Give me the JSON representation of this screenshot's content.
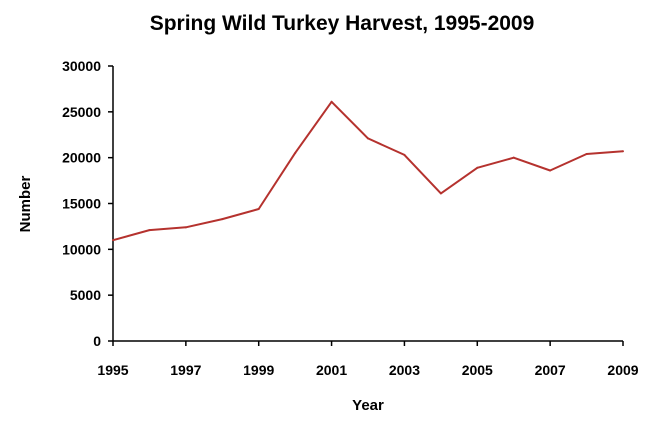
{
  "chart_data": {
    "type": "line",
    "title": "Spring Wild Turkey Harvest, 1995-2009",
    "xlabel": "Year",
    "ylabel": "Number",
    "xlim": [
      1995,
      2009
    ],
    "ylim": [
      0,
      30000
    ],
    "x_ticks": [
      "1995",
      "1997",
      "1999",
      "2001",
      "2003",
      "2005",
      "2007",
      "2009"
    ],
    "y_ticks": [
      "30000",
      "25000",
      "20000",
      "15000",
      "10000",
      "5000",
      "0"
    ],
    "grid": false,
    "legend": "none",
    "series": [
      {
        "color": "#b5322e",
        "x": [
          1995,
          1996,
          1997,
          1998,
          1999,
          2000,
          2001,
          2002,
          2003,
          2004,
          2005,
          2006,
          2007,
          2008,
          2009
        ],
        "values": [
          11000,
          12100,
          12400,
          13300,
          14400,
          20500,
          26100,
          22100,
          20300,
          16100,
          18900,
          20000,
          18600,
          20400,
          20700
        ]
      }
    ]
  }
}
